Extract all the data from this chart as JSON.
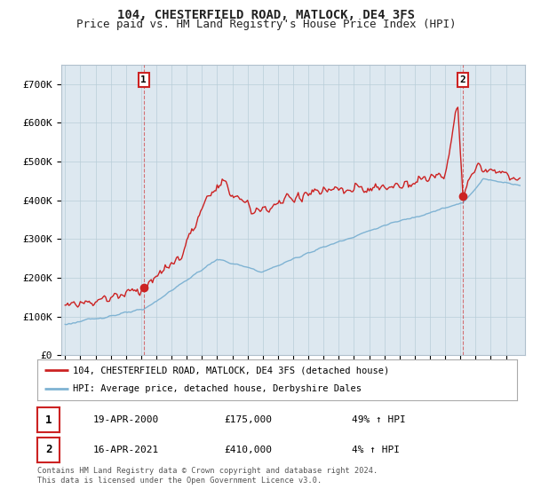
{
  "title": "104, CHESTERFIELD ROAD, MATLOCK, DE4 3FS",
  "subtitle": "Price paid vs. HM Land Registry's House Price Index (HPI)",
  "ylim": [
    0,
    750000
  ],
  "yticks": [
    0,
    100000,
    200000,
    300000,
    400000,
    500000,
    600000,
    700000
  ],
  "ytick_labels": [
    "£0",
    "£100K",
    "£200K",
    "£300K",
    "£400K",
    "£500K",
    "£600K",
    "£700K"
  ],
  "hpi_color": "#7fb3d3",
  "price_color": "#cc2222",
  "plot_bg_color": "#dde8f0",
  "background_color": "#ffffff",
  "grid_color": "#b8cdd8",
  "m1_idx": 62,
  "m2_idx": 314,
  "m1_price": 175000,
  "m2_price": 410000,
  "legend_line1": "104, CHESTERFIELD ROAD, MATLOCK, DE4 3FS (detached house)",
  "legend_line2": "HPI: Average price, detached house, Derbyshire Dales",
  "note1_date": "19-APR-2000",
  "note1_price": "£175,000",
  "note1_hpi": "49% ↑ HPI",
  "note2_date": "16-APR-2021",
  "note2_price": "£410,000",
  "note2_hpi": "4% ↑ HPI",
  "footer": "Contains HM Land Registry data © Crown copyright and database right 2024.\nThis data is licensed under the Open Government Licence v3.0.",
  "title_fontsize": 10,
  "subtitle_fontsize": 9
}
